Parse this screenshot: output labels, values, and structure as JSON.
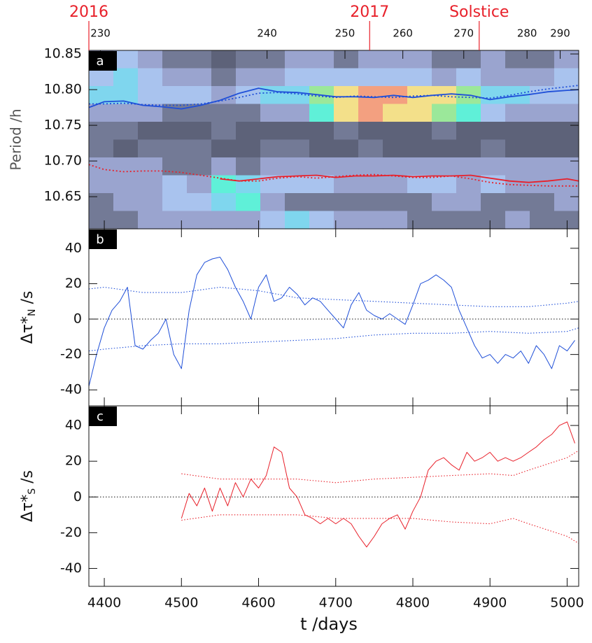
{
  "chart_data": [
    {
      "type": "heatmap",
      "label": "a",
      "y_label": "Period /h",
      "xlim": [
        4380,
        5015
      ],
      "ylim": [
        10.605,
        10.855
      ],
      "yticks": [
        {
          "value": 10.65,
          "label": "10.65"
        },
        {
          "value": 10.7,
          "label": "10.70"
        },
        {
          "value": 10.75,
          "label": "10.75"
        },
        {
          "value": 10.8,
          "label": "10.80"
        },
        {
          "value": 10.85,
          "label": "10.85"
        }
      ],
      "x2ticks": [
        {
          "value": 4395,
          "label": "230"
        },
        {
          "value": 4611,
          "label": "240"
        },
        {
          "value": 4712,
          "label": "250"
        },
        {
          "value": 4787,
          "label": "260"
        },
        {
          "value": 4866,
          "label": "270"
        },
        {
          "value": 4948,
          "label": "280"
        },
        {
          "value": 4991,
          "label": "290"
        }
      ],
      "markers": [
        {
          "label": "2016",
          "x": 4380
        },
        {
          "label": "2017",
          "x": 4744
        },
        {
          "label": "Solstice",
          "x": 4886
        }
      ],
      "marker_color": "#e8202a",
      "colormap": [
        "#4e5266",
        "#5d6279",
        "#737a96",
        "#9aa4cf",
        "#a9c3ee",
        "#7fd6ee",
        "#5ff0d8",
        "#9be89a",
        "#f3e08a",
        "#f3a080"
      ],
      "z": [
        [
          3,
          4,
          3,
          2,
          2,
          1,
          2,
          2,
          3,
          3,
          2,
          3,
          3,
          3,
          2,
          2,
          3,
          2,
          2,
          3
        ],
        [
          4,
          5,
          4,
          3,
          3,
          2,
          3,
          3,
          4,
          4,
          4,
          4,
          4,
          4,
          3,
          4,
          3,
          3,
          3,
          4
        ],
        [
          5,
          5,
          4,
          4,
          4,
          3,
          4,
          5,
          5,
          7,
          8,
          9,
          9,
          8,
          8,
          7,
          5,
          5,
          4,
          4
        ],
        [
          3,
          3,
          3,
          2,
          2,
          2,
          2,
          3,
          3,
          6,
          8,
          9,
          8,
          8,
          7,
          6,
          4,
          3,
          3,
          3
        ],
        [
          2,
          2,
          1,
          1,
          1,
          2,
          1,
          1,
          1,
          1,
          2,
          1,
          1,
          1,
          2,
          1,
          1,
          1,
          1,
          1
        ],
        [
          2,
          1,
          2,
          2,
          2,
          1,
          1,
          2,
          2,
          1,
          1,
          2,
          1,
          1,
          1,
          1,
          2,
          1,
          1,
          1
        ],
        [
          3,
          3,
          3,
          2,
          2,
          3,
          2,
          3,
          3,
          3,
          3,
          3,
          3,
          3,
          3,
          3,
          3,
          3,
          3,
          3
        ],
        [
          3,
          3,
          3,
          4,
          3,
          6,
          5,
          4,
          4,
          4,
          3,
          3,
          3,
          4,
          4,
          3,
          4,
          3,
          3,
          3
        ],
        [
          2,
          3,
          3,
          4,
          4,
          5,
          6,
          3,
          2,
          2,
          2,
          2,
          2,
          2,
          3,
          3,
          2,
          2,
          2,
          3
        ],
        [
          2,
          2,
          3,
          3,
          3,
          3,
          3,
          4,
          5,
          4,
          3,
          3,
          3,
          2,
          2,
          2,
          2,
          3,
          2,
          2
        ]
      ],
      "series": [
        {
          "color": "#1f4fd8",
          "dash": "solid",
          "x": [
            4380,
            4400,
            4425,
            4450,
            4475,
            4500,
            4525,
            4550,
            4575,
            4600,
            4625,
            4650,
            4675,
            4700,
            4725,
            4750,
            4775,
            4800,
            4825,
            4850,
            4875,
            4900,
            4925,
            4950,
            4975,
            5000,
            5015
          ],
          "values": [
            10.775,
            10.783,
            10.784,
            10.778,
            10.776,
            10.773,
            10.778,
            10.785,
            10.795,
            10.802,
            10.797,
            10.796,
            10.793,
            10.79,
            10.79,
            10.789,
            10.792,
            10.789,
            10.792,
            10.794,
            10.792,
            10.786,
            10.79,
            10.793,
            10.797,
            10.799,
            10.8
          ]
        },
        {
          "color": "#1f4fd8",
          "dash": "dotted",
          "x": [
            4380,
            4400,
            4425,
            4450,
            4475,
            4500,
            4525,
            4550,
            4575,
            4600,
            4625,
            4650,
            4675,
            4700,
            4725,
            4750,
            4775,
            4800,
            4825,
            4850,
            4875,
            4900,
            4925,
            4950,
            4975,
            5000,
            5015
          ],
          "values": [
            10.78,
            10.78,
            10.781,
            10.779,
            10.778,
            10.778,
            10.78,
            10.784,
            10.789,
            10.795,
            10.796,
            10.794,
            10.791,
            10.789,
            10.791,
            10.79,
            10.789,
            10.791,
            10.792,
            10.79,
            10.789,
            10.788,
            10.792,
            10.797,
            10.801,
            10.804,
            10.806
          ]
        },
        {
          "color": "#e8202a",
          "dash": "dotted",
          "x": [
            4380,
            4400,
            4425,
            4450,
            4475,
            4500,
            4525,
            4550,
            4575,
            4600,
            4625,
            4650,
            4675,
            4700,
            4725,
            4750,
            4775,
            4800,
            4825,
            4850,
            4875,
            4900,
            4925,
            4950,
            4975,
            5000,
            5015
          ],
          "values": [
            10.695,
            10.688,
            10.685,
            10.686,
            10.686,
            10.684,
            10.68,
            10.676,
            10.672,
            10.672,
            10.676,
            10.678,
            10.676,
            10.678,
            10.68,
            10.681,
            10.679,
            10.677,
            10.677,
            10.679,
            10.675,
            10.67,
            10.667,
            10.666,
            10.665,
            10.665,
            10.665
          ]
        },
        {
          "color": "#e8202a",
          "dash": "solid",
          "x": [
            4550,
            4575,
            4600,
            4625,
            4650,
            4675,
            4700,
            4725,
            4750,
            4775,
            4800,
            4825,
            4850,
            4875,
            4900,
            4925,
            4950,
            4975,
            5000,
            5015
          ],
          "values": [
            10.675,
            10.672,
            10.675,
            10.678,
            10.679,
            10.68,
            10.677,
            10.679,
            10.679,
            10.68,
            10.678,
            10.679,
            10.679,
            10.68,
            10.676,
            10.672,
            10.67,
            10.672,
            10.675,
            10.672
          ]
        }
      ]
    },
    {
      "type": "line",
      "label": "b",
      "y_label": "Δτ*",
      "y_label_sub": "N",
      "y_label_unit": " /s",
      "xlim": [
        4380,
        5015
      ],
      "ylim": [
        -49,
        51
      ],
      "yticks": [
        -40,
        -20,
        0,
        20,
        40
      ],
      "hline": 0,
      "series": [
        {
          "color": "#1f4fd8",
          "dash": "solid",
          "x": [
            4380,
            4390,
            4400,
            4410,
            4420,
            4430,
            4440,
            4450,
            4460,
            4470,
            4480,
            4490,
            4500,
            4510,
            4520,
            4530,
            4540,
            4550,
            4560,
            4570,
            4580,
            4590,
            4600,
            4610,
            4620,
            4630,
            4640,
            4650,
            4660,
            4670,
            4680,
            4690,
            4700,
            4710,
            4720,
            4730,
            4740,
            4750,
            4760,
            4770,
            4780,
            4790,
            4800,
            4810,
            4820,
            4830,
            4840,
            4850,
            4860,
            4870,
            4880,
            4890,
            4900,
            4910,
            4920,
            4930,
            4940,
            4950,
            4960,
            4970,
            4980,
            4990,
            5000,
            5010
          ],
          "values": [
            -38,
            -20,
            -5,
            5,
            10,
            18,
            -15,
            -17,
            -12,
            -8,
            0,
            -20,
            -28,
            5,
            25,
            32,
            34,
            35,
            28,
            18,
            10,
            0,
            18,
            25,
            10,
            12,
            18,
            14,
            8,
            12,
            10,
            5,
            0,
            -5,
            8,
            15,
            5,
            2,
            0,
            3,
            0,
            -3,
            8,
            20,
            22,
            25,
            22,
            18,
            5,
            -5,
            -15,
            -22,
            -20,
            -25,
            -20,
            -22,
            -18,
            -25,
            -15,
            -20,
            -28,
            -15,
            -18,
            -12
          ]
        },
        {
          "color": "#1f4fd8",
          "dash": "dotted",
          "x": [
            4380,
            4400,
            4450,
            4500,
            4550,
            4600,
            4650,
            4700,
            4750,
            4800,
            4850,
            4900,
            4950,
            5000,
            5015
          ],
          "values": [
            17,
            18,
            15,
            15,
            18,
            16,
            12,
            11,
            10,
            9,
            8,
            7,
            7,
            9,
            10
          ]
        },
        {
          "color": "#1f4fd8",
          "dash": "dotted",
          "x": [
            4380,
            4400,
            4450,
            4500,
            4550,
            4600,
            4650,
            4700,
            4750,
            4800,
            4850,
            4900,
            4950,
            5000,
            5015
          ],
          "values": [
            -18,
            -17,
            -15,
            -14,
            -14,
            -13,
            -12,
            -11,
            -9,
            -8,
            -8,
            -7,
            -8,
            -7,
            -5
          ]
        }
      ]
    },
    {
      "type": "line",
      "label": "c",
      "y_label": "Δτ*",
      "y_label_sub": "S",
      "y_label_unit": " /s",
      "x_label": "t /days",
      "xlim": [
        4380,
        5015
      ],
      "ylim": [
        -50,
        51
      ],
      "yticks": [
        -40,
        -20,
        0,
        20,
        40
      ],
      "hline": 0,
      "xticks": [
        4400,
        4500,
        4600,
        4700,
        4800,
        4900,
        5000
      ],
      "series": [
        {
          "color": "#e8202a",
          "dash": "solid",
          "x": [
            4500,
            4510,
            4520,
            4530,
            4540,
            4550,
            4560,
            4570,
            4580,
            4590,
            4600,
            4610,
            4620,
            4630,
            4640,
            4650,
            4660,
            4670,
            4680,
            4690,
            4700,
            4710,
            4720,
            4730,
            4740,
            4750,
            4760,
            4770,
            4780,
            4790,
            4800,
            4810,
            4820,
            4830,
            4840,
            4850,
            4860,
            4870,
            4880,
            4890,
            4900,
            4910,
            4920,
            4930,
            4940,
            4950,
            4960,
            4970,
            4980,
            4990,
            5000,
            5010
          ],
          "values": [
            -12,
            2,
            -5,
            5,
            -8,
            5,
            -5,
            8,
            0,
            10,
            5,
            12,
            28,
            25,
            5,
            0,
            -10,
            -12,
            -15,
            -12,
            -15,
            -12,
            -15,
            -22,
            -28,
            -22,
            -15,
            -12,
            -10,
            -18,
            -8,
            0,
            15,
            20,
            22,
            18,
            15,
            25,
            20,
            22,
            25,
            20,
            22,
            20,
            22,
            25,
            28,
            32,
            35,
            40,
            42,
            30
          ]
        },
        {
          "color": "#e8202a",
          "dash": "dotted",
          "x": [
            4500,
            4550,
            4600,
            4650,
            4700,
            4750,
            4800,
            4850,
            4900,
            4930,
            4950,
            5000,
            5015
          ],
          "values": [
            13,
            10,
            10,
            10,
            8,
            10,
            11,
            12,
            13,
            12,
            15,
            22,
            26
          ]
        },
        {
          "color": "#e8202a",
          "dash": "dotted",
          "x": [
            4500,
            4550,
            4600,
            4650,
            4700,
            4750,
            4800,
            4850,
            4900,
            4930,
            4950,
            5000,
            5015
          ],
          "values": [
            -13,
            -10,
            -10,
            -10,
            -12,
            -12,
            -12,
            -14,
            -15,
            -12,
            -15,
            -22,
            -26
          ]
        }
      ]
    }
  ]
}
